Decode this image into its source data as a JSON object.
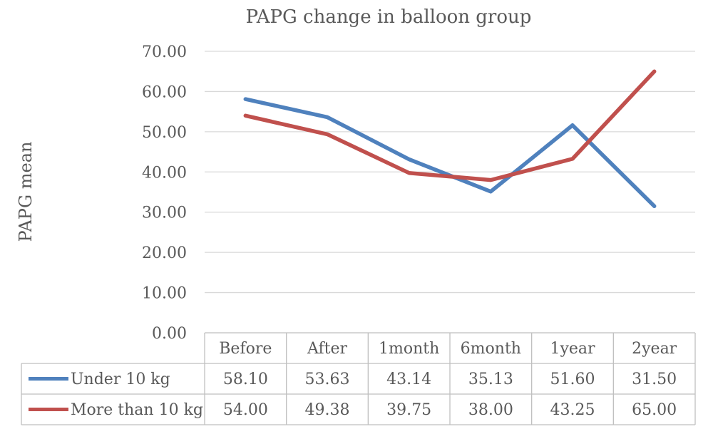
{
  "chart_data": {
    "type": "line",
    "title": "PAPG change in balloon group",
    "xlabel": "",
    "ylabel": "PAPG mean",
    "categories": [
      "Before",
      "After",
      "1month",
      "6month",
      "1year",
      "2year"
    ],
    "ylim": [
      0,
      70
    ],
    "yticks": [
      "0.00",
      "10.00",
      "20.00",
      "30.00",
      "40.00",
      "50.00",
      "60.00",
      "70.00"
    ],
    "grid": true,
    "legend": "data-table",
    "series": [
      {
        "name": "Under 10 kg",
        "color": "#4F81BD",
        "values": [
          58.1,
          53.63,
          43.14,
          35.13,
          51.6,
          31.5
        ],
        "labels": [
          "58.10",
          "53.63",
          "43.14",
          "35.13",
          "51.60",
          "31.50"
        ]
      },
      {
        "name": "More than 10 kg",
        "color": "#C0504D",
        "values": [
          54.0,
          49.38,
          39.75,
          38.0,
          43.25,
          65.0
        ],
        "labels": [
          "54.00",
          "49.38",
          "39.75",
          "38.00",
          "43.25",
          "65.00"
        ]
      }
    ]
  }
}
